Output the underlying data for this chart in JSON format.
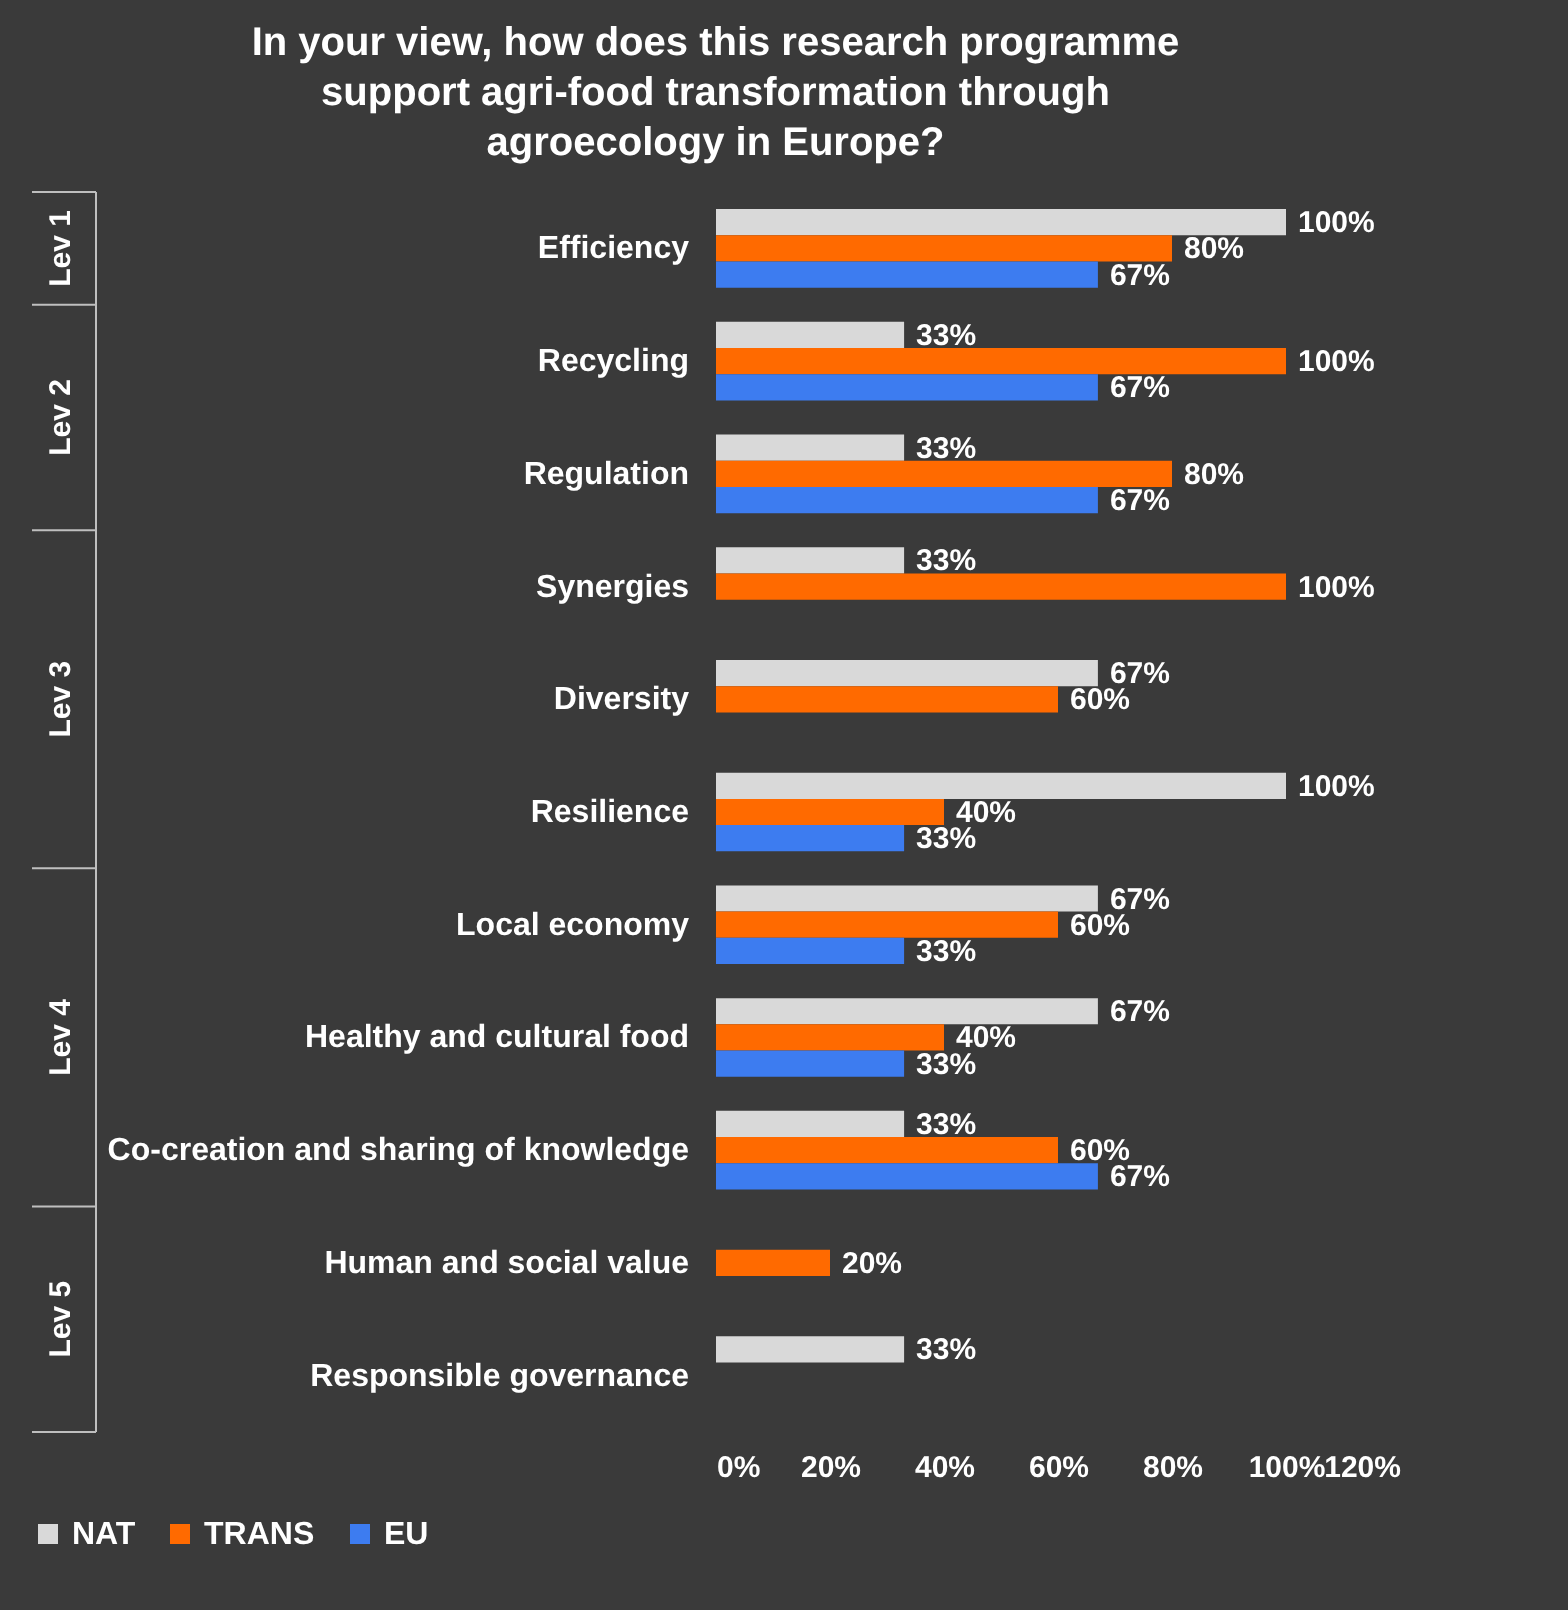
{
  "chart_data": {
    "type": "bar",
    "orientation": "horizontal",
    "title": "In your view, how does this research programme support agri-food transformation through agroecology in Europe?",
    "categories": [
      "Efficiency",
      "Recycling",
      "Regulation",
      "Synergies",
      "Diversity",
      "Resilience",
      "Local economy",
      "Healthy and cultural food",
      "Co-creation and sharing of knowledge",
      "Human and social value",
      "Responsible governance"
    ],
    "series": [
      {
        "name": "NAT",
        "color": "#d9d9d9",
        "values": [
          100,
          33,
          33,
          33,
          67,
          100,
          67,
          67,
          33,
          null,
          33
        ],
        "value_labels": [
          "100%",
          "33%",
          "33%",
          "33%",
          "67%",
          "100%",
          "67%",
          "67%",
          "33%",
          null,
          "33%"
        ]
      },
      {
        "name": "TRANS",
        "color": "#ff6a00",
        "values": [
          80,
          100,
          80,
          100,
          60,
          40,
          60,
          40,
          60,
          20,
          null
        ],
        "value_labels": [
          "80%",
          "100%",
          "80%",
          "100%",
          "60%",
          "40%",
          "60%",
          "40%",
          "60%",
          "20%",
          null
        ]
      },
      {
        "name": "EU",
        "color": "#3d7cf0",
        "values": [
          67,
          67,
          67,
          null,
          null,
          33,
          33,
          33,
          67,
          null,
          null
        ],
        "value_labels": [
          "67%",
          "67%",
          "67%",
          null,
          null,
          "33%",
          "33%",
          "33%",
          "67%",
          null,
          null
        ]
      }
    ],
    "xlim": [
      0,
      120
    ],
    "xticks": [
      {
        "value": 0,
        "label": "0%"
      },
      {
        "value": 20,
        "label": "20%"
      },
      {
        "value": 40,
        "label": "40%"
      },
      {
        "value": 60,
        "label": "60%"
      },
      {
        "value": 80,
        "label": "80%"
      },
      {
        "value": 100,
        "label": "100%"
      },
      {
        "value": 120,
        "label": "120%"
      }
    ],
    "legend": "bottom",
    "annotations": [
      "Lev 1",
      "Lev 2",
      "Lev 3",
      "Lev 4",
      "Lev 5"
    ]
  }
}
